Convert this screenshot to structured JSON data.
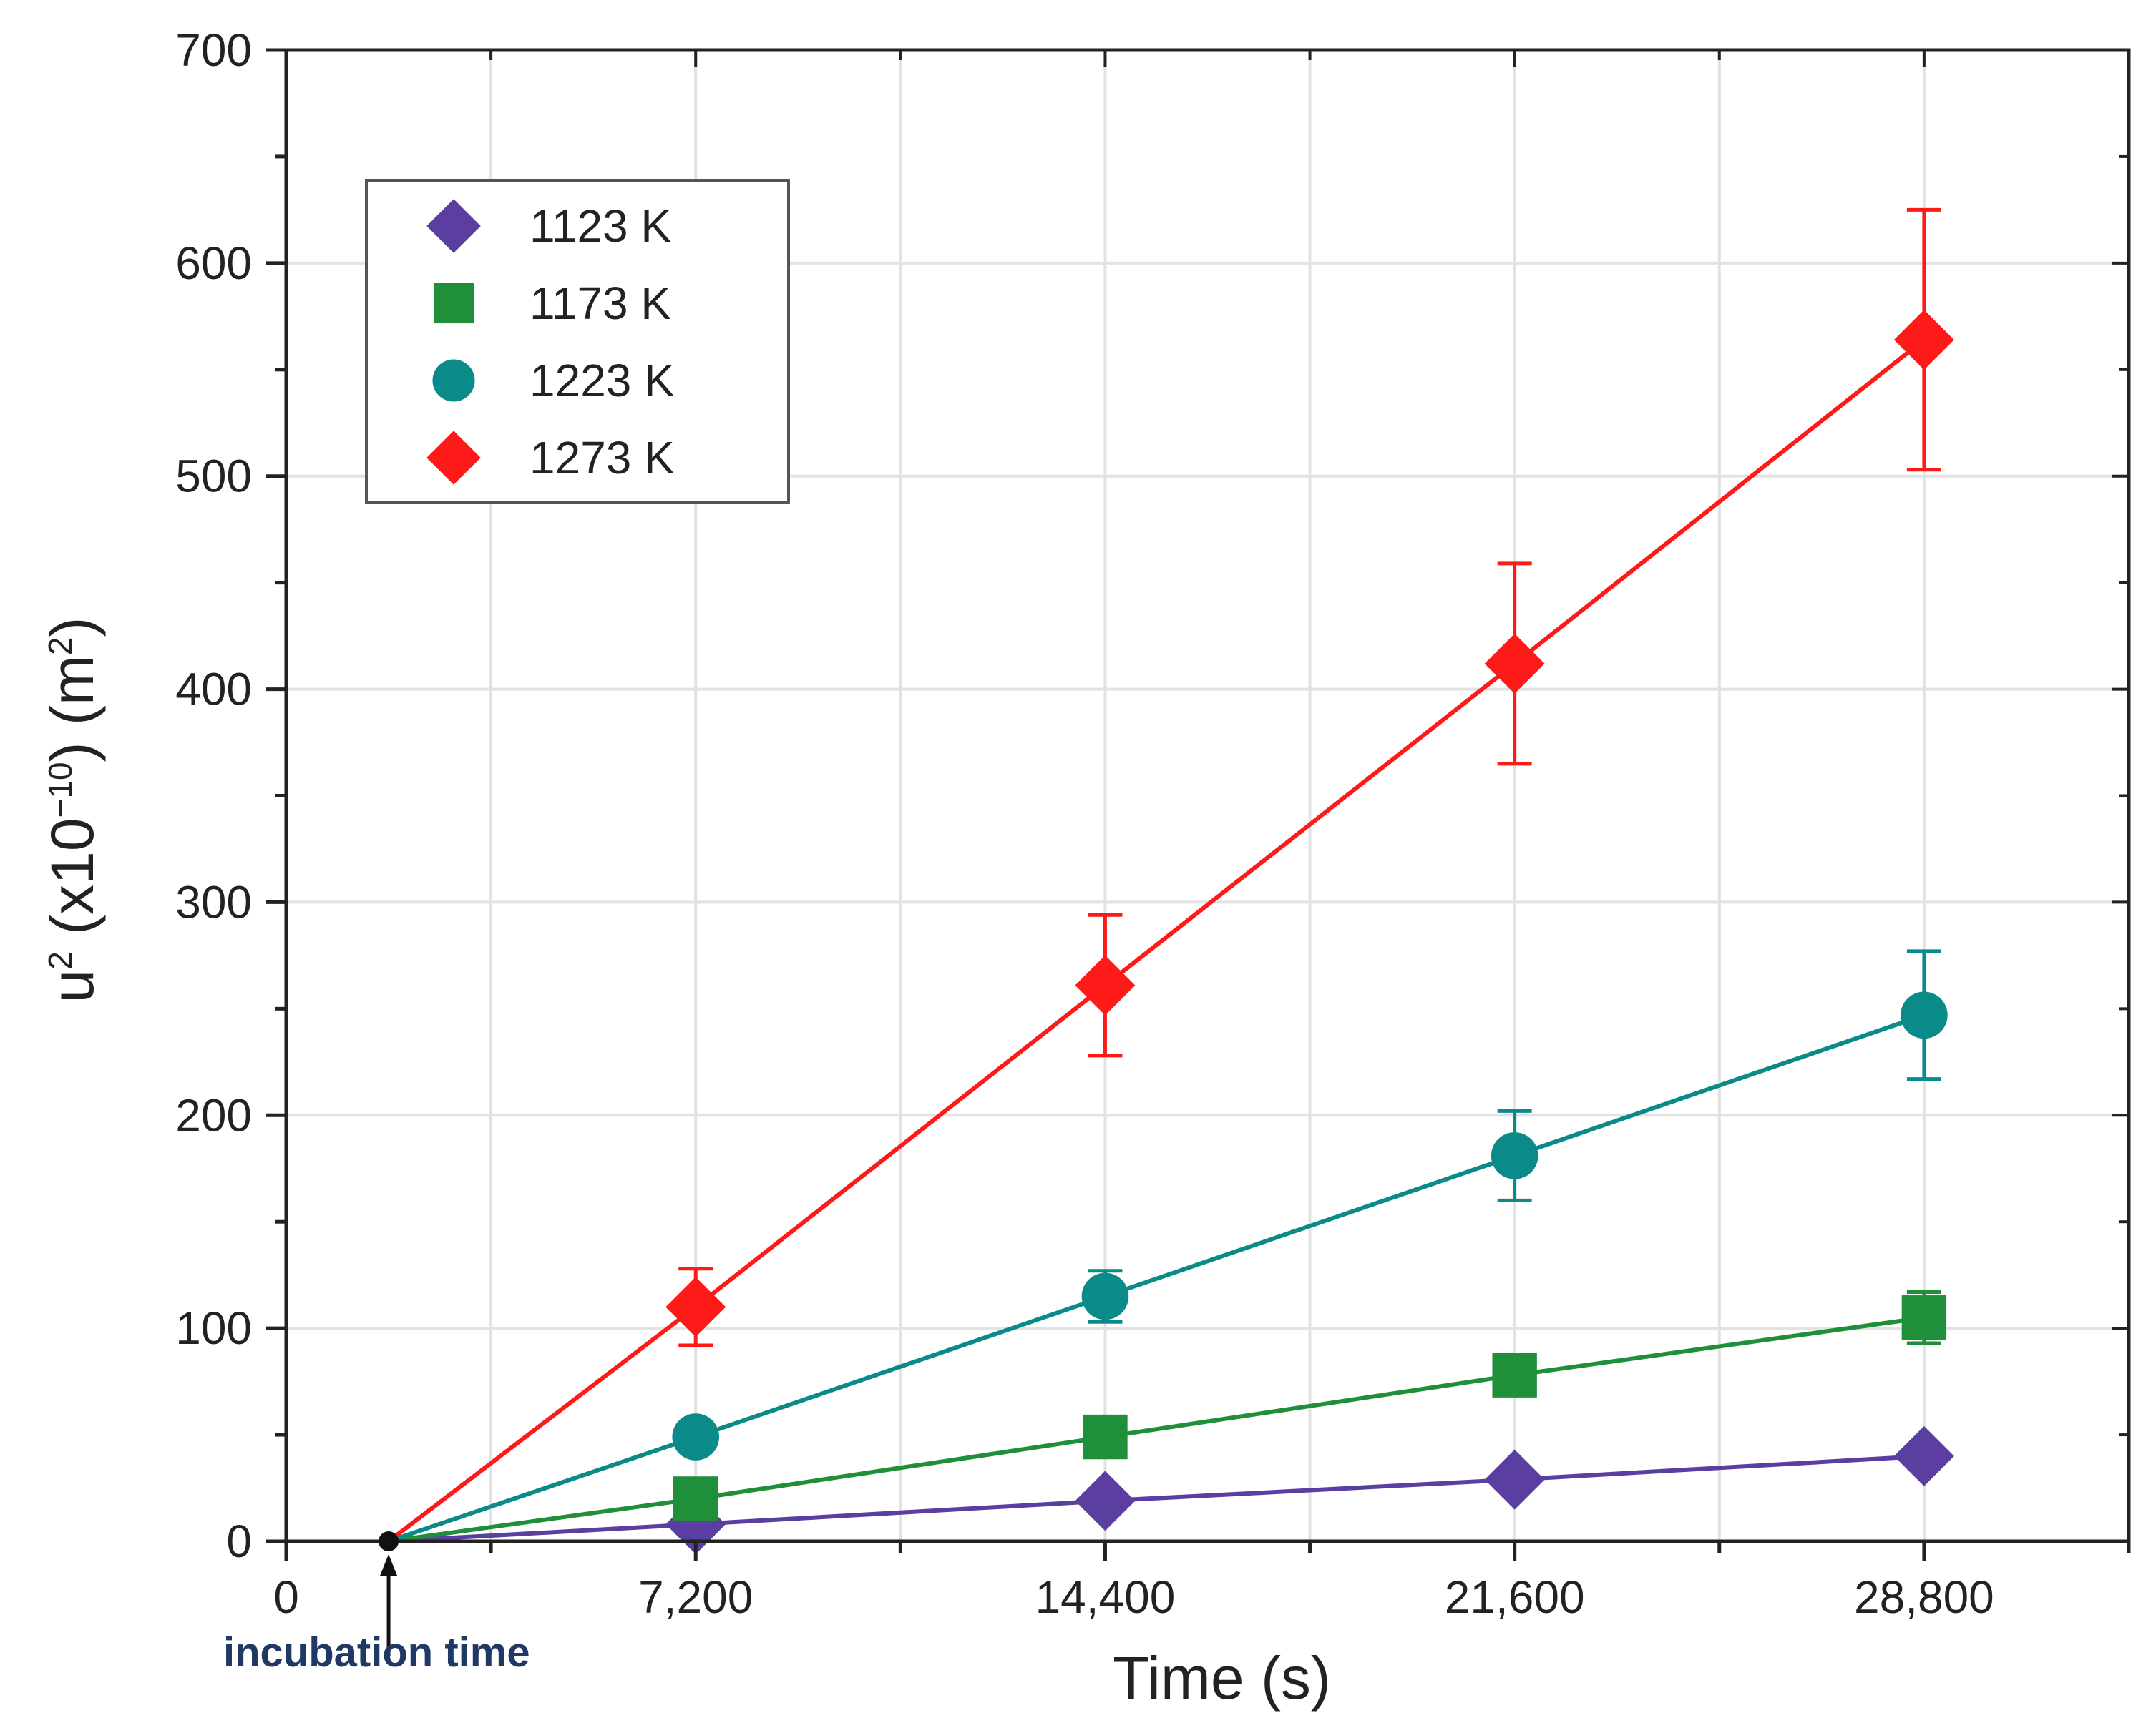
{
  "chart_data": {
    "type": "line",
    "title": "",
    "xlabel": "Time (s)",
    "ylabel_parts": {
      "base": "u",
      "exp1": "2",
      "mid": " (x10",
      "exp2": "−10",
      "unit": ") (m",
      "exp3": "2",
      "end": ")"
    },
    "xlim": [
      0,
      32400
    ],
    "ylim": [
      0,
      700
    ],
    "x_major_ticks": [
      0,
      7200,
      14400,
      21600,
      28800
    ],
    "x_tick_labels": [
      "0",
      "7,200",
      "14,400",
      "21,600",
      "28,800"
    ],
    "y_major_ticks": [
      0,
      100,
      200,
      300,
      400,
      500,
      600,
      700
    ],
    "y_tick_labels": [
      "0",
      "100",
      "200",
      "300",
      "400",
      "500",
      "600",
      "700"
    ],
    "grid": true,
    "legend_position": "top-left",
    "incubation_time": 1800,
    "annotation": "incubation time",
    "series": [
      {
        "name": "1123 K",
        "color": "#5b3fa0",
        "marker": "diamond",
        "x": [
          1800,
          7200,
          14400,
          21600,
          28800
        ],
        "y": [
          0,
          8,
          19,
          29,
          40
        ],
        "err": [
          0,
          0,
          0,
          0,
          0
        ]
      },
      {
        "name": "1173 K",
        "color": "#1f8f3a",
        "marker": "square",
        "x": [
          1800,
          7200,
          14400,
          21600,
          28800
        ],
        "y": [
          0,
          20,
          49,
          78,
          105
        ],
        "err": [
          0,
          0,
          0,
          0,
          12
        ]
      },
      {
        "name": "1223 K",
        "color": "#0b8a8a",
        "marker": "circle",
        "x": [
          1800,
          7200,
          14400,
          21600,
          28800
        ],
        "y": [
          0,
          49,
          115,
          181,
          247
        ],
        "err": [
          0,
          0,
          12,
          21,
          30
        ]
      },
      {
        "name": "1273 K",
        "color": "#ff1a1a",
        "marker": "diamond",
        "x": [
          1800,
          7200,
          14400,
          21600,
          28800
        ],
        "y": [
          0,
          110,
          261,
          412,
          564
        ],
        "err": [
          0,
          18,
          33,
          47,
          61
        ]
      }
    ]
  }
}
